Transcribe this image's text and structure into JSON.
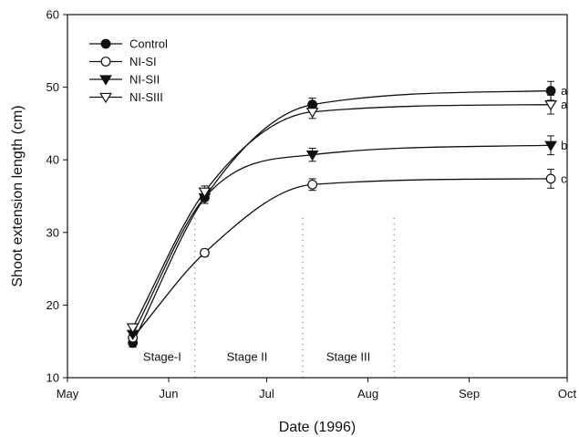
{
  "chart_data": {
    "type": "line",
    "xlabel": "Date (1996)",
    "ylabel": "Shoot extension length (cm)",
    "ylim": [
      10,
      60
    ],
    "yticks": [
      10,
      20,
      30,
      40,
      50,
      60
    ],
    "xticks": [
      {
        "label": "May",
        "date": "1996-05-01"
      },
      {
        "label": "Jun",
        "date": "1996-06-01"
      },
      {
        "label": "Jul",
        "date": "1996-07-01"
      },
      {
        "label": "Aug",
        "date": "1996-08-01"
      },
      {
        "label": "Sep",
        "date": "1996-09-01"
      },
      {
        "label": "Oct",
        "date": "1996-10-01"
      }
    ],
    "xlim": [
      "1996-05-01",
      "1996-10-01"
    ],
    "x": [
      "1996-05-21",
      "1996-06-12",
      "1996-07-15",
      "1996-09-26"
    ],
    "legend_position": "top-left",
    "series": [
      {
        "name": "Control",
        "marker": "filled-circle",
        "values": [
          14.8,
          34.8,
          47.6,
          49.5
        ],
        "errors": [
          0.6,
          0.8,
          0.9,
          1.3
        ],
        "significance": "a"
      },
      {
        "name": "NI-SI",
        "marker": "open-circle",
        "values": [
          15.5,
          27.2,
          36.6,
          37.4
        ],
        "errors": [
          0.5,
          0.5,
          0.8,
          1.3
        ],
        "significance": "c"
      },
      {
        "name": "NI-SII",
        "marker": "filled-triangle-down",
        "values": [
          16.0,
          34.8,
          40.7,
          42.0
        ],
        "errors": [
          0.5,
          0.8,
          0.9,
          1.3
        ],
        "significance": "b"
      },
      {
        "name": "NI-SIII",
        "marker": "open-triangle-down",
        "values": [
          16.9,
          35.6,
          46.6,
          47.6
        ],
        "errors": [
          0.5,
          0.8,
          0.9,
          1.3
        ],
        "significance": "a"
      }
    ],
    "stages": [
      {
        "label": "Stage-I"
      },
      {
        "label": "Stage II"
      },
      {
        "label": "Stage III"
      }
    ],
    "stage_boundaries": [
      "1996-06-09",
      "1996-07-12",
      "1996-08-09"
    ]
  }
}
